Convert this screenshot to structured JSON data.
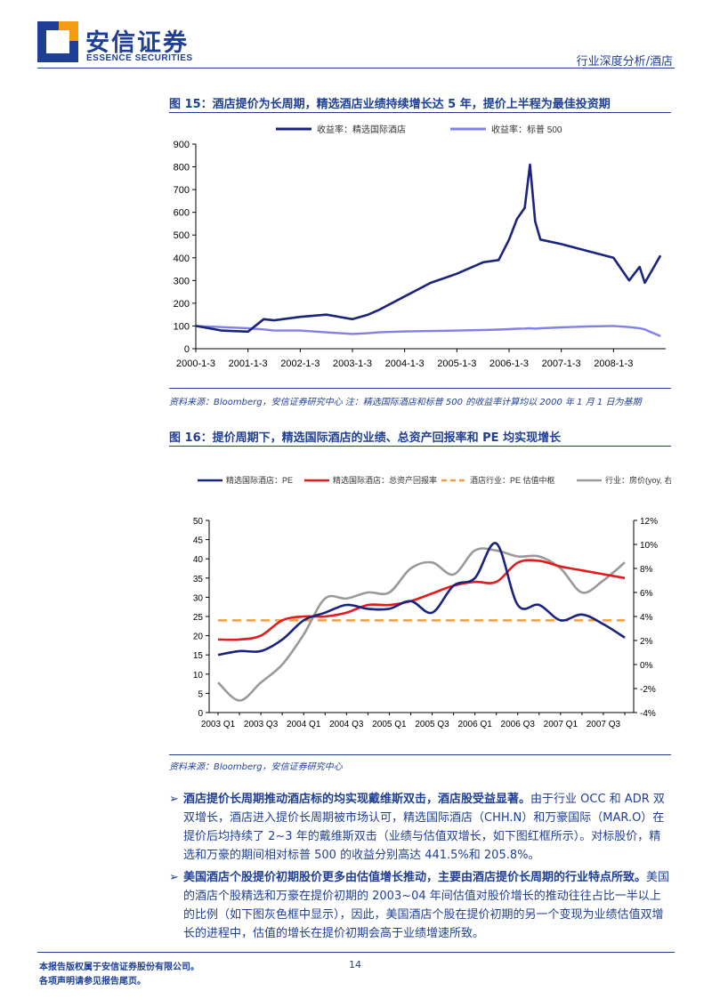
{
  "header": {
    "brand_cn": "安信证券",
    "brand_en": "ESSENCE SECURITIES",
    "report_type": "行业深度分析/酒店",
    "brand_color": "#1f3f95"
  },
  "figure15": {
    "title": "图 15：酒店提价为长周期，精选酒店业绩持续增长达 5 年，提价上半程为最佳投资期",
    "source": "资料来源：Bloomberg，安信证券研究中心 注：精选国际酒店和标普 500 的收益率计算均以 2000 年 1 月 1 日为基期"
  },
  "figure16": {
    "title": "图 16：提价周期下，精选国际酒店的业绩、总资产回报率和 PE 均实现增长",
    "source": "资料来源：Bloomberg，安信证券研究中心"
  },
  "chart_data": [
    {
      "type": "line",
      "legend_position": "top",
      "grid": false,
      "x_ticks": [
        "2000-1-3",
        "2001-1-3",
        "2002-1-3",
        "2003-1-3",
        "2004-1-3",
        "2005-1-3",
        "2006-1-3",
        "2007-1-3",
        "2008-1-3"
      ],
      "ylim": [
        0,
        900
      ],
      "y_ticks": [
        0,
        100,
        200,
        300,
        400,
        500,
        600,
        700,
        800,
        900
      ],
      "x": [
        2000.0,
        2000.5,
        2001.0,
        2001.3,
        2001.5,
        2002.0,
        2002.5,
        2003.0,
        2003.3,
        2003.5,
        2004.0,
        2004.5,
        2005.0,
        2005.5,
        2005.8,
        2006.0,
        2006.15,
        2006.3,
        2006.4,
        2006.5,
        2006.6,
        2007.0,
        2007.5,
        2008.0,
        2008.3,
        2008.5,
        2008.6,
        2008.75,
        2008.9
      ],
      "series": [
        {
          "name": "收益率：精选国际酒店",
          "color": "#1a237e",
          "values": [
            100,
            80,
            75,
            130,
            125,
            140,
            150,
            130,
            150,
            170,
            230,
            290,
            330,
            380,
            390,
            480,
            570,
            620,
            810,
            560,
            480,
            460,
            430,
            400,
            300,
            360,
            290,
            350,
            410
          ]
        },
        {
          "name": "收益率：标普 500",
          "color": "#8080e8",
          "values": [
            100,
            95,
            90,
            85,
            80,
            80,
            72,
            65,
            68,
            72,
            76,
            78,
            80,
            82,
            84,
            86,
            88,
            89,
            90,
            88,
            90,
            94,
            98,
            100,
            95,
            90,
            85,
            70,
            55
          ]
        }
      ]
    },
    {
      "type": "line",
      "legend_position": "top",
      "grid": false,
      "categories": [
        "2003 Q1",
        "2003 Q2",
        "2003 Q3",
        "2003 Q4",
        "2004 Q1",
        "2004 Q2",
        "2004 Q3",
        "2004 Q4",
        "2005 Q1",
        "2005 Q2",
        "2005 Q3",
        "2005 Q4",
        "2006 Q1",
        "2006 Q2",
        "2006 Q3",
        "2006 Q4",
        "2007 Q1",
        "2007 Q2",
        "2007 Q3",
        "2007 Q4"
      ],
      "x_tick_labels": [
        "2003 Q1",
        "2003 Q3",
        "2004 Q1",
        "2004 Q3",
        "2005 Q1",
        "2005 Q3",
        "2006 Q1",
        "2006 Q3",
        "2007 Q1",
        "2007 Q3"
      ],
      "ylim": [
        0,
        50
      ],
      "y_ticks": [
        0,
        5,
        10,
        15,
        20,
        25,
        30,
        35,
        40,
        45,
        50
      ],
      "y2lim": [
        -4,
        12
      ],
      "y2_ticks": [
        "-4%",
        "-2%",
        "0%",
        "2%",
        "4%",
        "6%",
        "8%",
        "10%",
        "12%"
      ],
      "series": [
        {
          "name": "精选国际酒店：PE",
          "color": "#1a237e",
          "axis": "left",
          "style": "solid",
          "values": [
            15,
            16,
            16,
            19,
            24,
            26,
            28,
            27,
            27,
            29,
            26,
            33,
            35,
            44,
            28,
            28,
            24,
            25.5,
            23,
            19.5
          ]
        },
        {
          "name": "精选国际酒店：总资产回报率",
          "color": "#e41a1c",
          "axis": "left",
          "style": "solid",
          "values": [
            19,
            19,
            20,
            24,
            25,
            25,
            26,
            28,
            28,
            29,
            31,
            33,
            34,
            34,
            39,
            39.5,
            38,
            37,
            36,
            35
          ]
        },
        {
          "name": "酒店行业：PE 估值中枢",
          "color": "#f39c3d",
          "axis": "left",
          "style": "dashed",
          "values": [
            24,
            24,
            24,
            24,
            24,
            24,
            24,
            24,
            24,
            24,
            24,
            24,
            24,
            24,
            24,
            24,
            24,
            24,
            24,
            24
          ]
        },
        {
          "name": "行业：房价(yoy, 右轴)",
          "color": "#999999",
          "axis": "right",
          "style": "solid",
          "values": [
            -1.5,
            -3,
            -1.5,
            0,
            2.5,
            5.5,
            5.5,
            6,
            6,
            8,
            8.5,
            7.5,
            9.5,
            9.5,
            9,
            9,
            8,
            6,
            7,
            8.5
          ]
        }
      ]
    }
  ],
  "paragraphs": [
    {
      "arrow": "➢",
      "lead": "酒店提价长周期推动酒店标的均实现戴维斯双击，酒店股受益显著。",
      "body": "由于行业 OCC 和 ADR 双双增长，酒店进入提价长周期被市场认可，精选国际酒店（CHH.N）和万豪国际（MAR.O）在提价后均持续了 2~3 年的戴维斯双击（业绩与估值双增长，如下图红框所示）。对标股价，精选和万豪的期间相对标普 500 的收益分别高达 441.5%和 205.8%。"
    },
    {
      "arrow": "➢",
      "lead": "美国酒店个股提价初期股价更多由估值增长推动，主要由酒店提价长周期的行业特点所致。",
      "body": "美国的酒店个股精选和万豪在提价初期的 2003~04 年间估值对股价增长的推动往往占比一半以上的比例（如下图灰色框中显示），因此，美国酒店个股在提价初期的另一个变现为业绩估值双增长的进程中，估值的增长在提价初期会高于业绩增速所致。"
    }
  ],
  "footer": {
    "copyright": "本报告版权属于安信证券股份有限公司。",
    "disclaimer": "各项声明请参见报告尾页。",
    "page_number": "14"
  }
}
